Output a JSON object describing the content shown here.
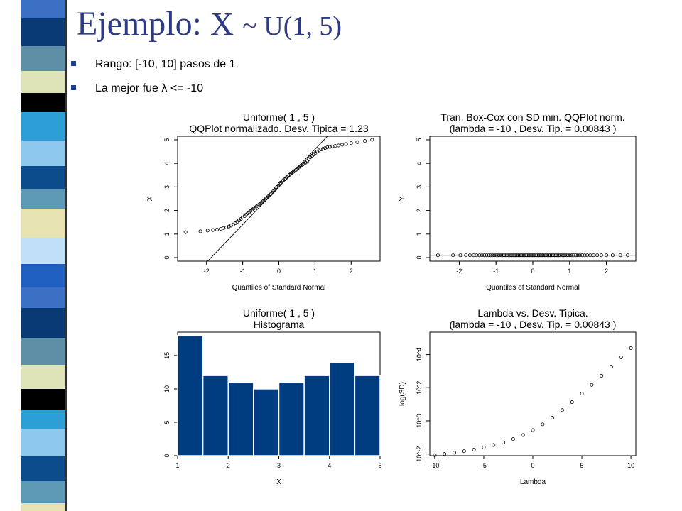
{
  "slide": {
    "title_prefix": "Ejemplo:",
    "title_var": "X",
    "title_dist": "~ U(1, 5)",
    "bullets": [
      "Rango: [-10, 10] pasos de 1.",
      "La mejor fue λ <= -10"
    ]
  },
  "colors": {
    "title": "#2d3b86",
    "bar_fill": "#003c80",
    "bullet": "#1f3d8a"
  },
  "chart_data": [
    {
      "id": "qq-x",
      "type": "scatter",
      "title": "Uniforme( 1 ,  5 )",
      "subtitle": "QQPlot normalizado. Desv. Tipica =  1.23",
      "xlabel": "Quantiles of Standard Normal",
      "ylabel": "X",
      "xlim": [
        -2.8,
        2.8
      ],
      "ylim": [
        -0.15,
        5.15
      ],
      "xticks": [
        -2,
        -1,
        0,
        1,
        2
      ],
      "yticks": [
        0,
        1,
        2,
        3,
        4,
        5
      ],
      "reference_line": {
        "intercept": 3.0,
        "slope": 1.6
      },
      "x": [
        -2.58,
        -2.17,
        -1.97,
        -1.82,
        -1.71,
        -1.61,
        -1.53,
        -1.45,
        -1.38,
        -1.32,
        -1.26,
        -1.2,
        -1.15,
        -1.1,
        -1.05,
        -1.0,
        -0.95,
        -0.91,
        -0.86,
        -0.82,
        -0.78,
        -0.74,
        -0.7,
        -0.66,
        -0.62,
        -0.58,
        -0.54,
        -0.5,
        -0.47,
        -0.43,
        -0.39,
        -0.36,
        -0.32,
        -0.29,
        -0.25,
        -0.22,
        -0.18,
        -0.15,
        -0.11,
        -0.08,
        -0.05,
        -0.01,
        0.02,
        0.05,
        0.09,
        0.12,
        0.16,
        0.19,
        0.22,
        0.26,
        0.29,
        0.33,
        0.36,
        0.4,
        0.44,
        0.47,
        0.51,
        0.55,
        0.59,
        0.62,
        0.66,
        0.7,
        0.74,
        0.79,
        0.83,
        0.87,
        0.92,
        0.96,
        1.01,
        1.06,
        1.11,
        1.17,
        1.22,
        1.28,
        1.34,
        1.41,
        1.48,
        1.56,
        1.65,
        1.75,
        1.86,
        2.0,
        2.17,
        2.38,
        2.58
      ],
      "y": [
        1.08,
        1.12,
        1.15,
        1.17,
        1.19,
        1.22,
        1.25,
        1.28,
        1.32,
        1.36,
        1.41,
        1.46,
        1.52,
        1.58,
        1.64,
        1.7,
        1.76,
        1.82,
        1.88,
        1.93,
        1.98,
        2.03,
        2.08,
        2.12,
        2.17,
        2.21,
        2.26,
        2.3,
        2.35,
        2.4,
        2.45,
        2.5,
        2.55,
        2.6,
        2.65,
        2.7,
        2.76,
        2.82,
        2.88,
        2.94,
        3.0,
        3.06,
        3.12,
        3.18,
        3.23,
        3.28,
        3.32,
        3.36,
        3.41,
        3.46,
        3.51,
        3.56,
        3.6,
        3.64,
        3.68,
        3.72,
        3.77,
        3.82,
        3.87,
        3.91,
        3.95,
        3.99,
        4.03,
        4.1,
        4.18,
        4.26,
        4.32,
        4.38,
        4.44,
        4.5,
        4.55,
        4.59,
        4.62,
        4.65,
        4.68,
        4.7,
        4.72,
        4.74,
        4.76,
        4.79,
        4.82,
        4.86,
        4.9,
        4.95,
        5.0
      ]
    },
    {
      "id": "qq-y",
      "type": "scatter",
      "title": "Tran. Box-Cox con SD min. QQPlot norm.",
      "subtitle": "(lambda =  -10 , Desv. Tip. =  0.00843 )",
      "xlabel": "Quantiles of Standard Normal",
      "ylabel": "Y",
      "xlim": [
        -2.8,
        2.8
      ],
      "ylim": [
        -0.15,
        5.15
      ],
      "xticks": [
        -2,
        -1,
        0,
        1,
        2
      ],
      "yticks": [
        0,
        1,
        2,
        3,
        4,
        5
      ],
      "reference_line": {
        "intercept": 0.1,
        "slope": 0
      },
      "x": [
        -2.58,
        -2.17,
        -1.97,
        -1.82,
        -1.71,
        -1.61,
        -1.53,
        -1.45,
        -1.38,
        -1.32,
        -1.26,
        -1.2,
        -1.15,
        -1.1,
        -1.05,
        -1.0,
        -0.95,
        -0.91,
        -0.86,
        -0.82,
        -0.78,
        -0.74,
        -0.7,
        -0.66,
        -0.62,
        -0.58,
        -0.54,
        -0.5,
        -0.47,
        -0.43,
        -0.39,
        -0.36,
        -0.32,
        -0.29,
        -0.25,
        -0.22,
        -0.18,
        -0.15,
        -0.11,
        -0.08,
        -0.05,
        -0.01,
        0.02,
        0.05,
        0.09,
        0.12,
        0.16,
        0.19,
        0.22,
        0.26,
        0.29,
        0.33,
        0.36,
        0.4,
        0.44,
        0.47,
        0.51,
        0.55,
        0.59,
        0.62,
        0.66,
        0.7,
        0.74,
        0.79,
        0.83,
        0.87,
        0.92,
        0.96,
        1.01,
        1.06,
        1.11,
        1.17,
        1.22,
        1.28,
        1.34,
        1.41,
        1.48,
        1.56,
        1.65,
        1.75,
        1.86,
        2.0,
        2.17,
        2.38,
        2.58
      ],
      "y": [
        0.1,
        0.1,
        0.1,
        0.1,
        0.1,
        0.1,
        0.1,
        0.1,
        0.1,
        0.1,
        0.1,
        0.1,
        0.1,
        0.1,
        0.1,
        0.1,
        0.1,
        0.1,
        0.1,
        0.1,
        0.1,
        0.1,
        0.1,
        0.1,
        0.1,
        0.1,
        0.1,
        0.1,
        0.1,
        0.1,
        0.1,
        0.1,
        0.1,
        0.1,
        0.1,
        0.1,
        0.1,
        0.1,
        0.1,
        0.1,
        0.1,
        0.1,
        0.1,
        0.1,
        0.1,
        0.1,
        0.1,
        0.1,
        0.1,
        0.1,
        0.1,
        0.1,
        0.1,
        0.1,
        0.1,
        0.1,
        0.1,
        0.1,
        0.1,
        0.1,
        0.1,
        0.1,
        0.1,
        0.1,
        0.1,
        0.1,
        0.1,
        0.1,
        0.1,
        0.1,
        0.1,
        0.1,
        0.1,
        0.1,
        0.1,
        0.1,
        0.1,
        0.1,
        0.1,
        0.1,
        0.1,
        0.1,
        0.1,
        0.1,
        0.1
      ]
    },
    {
      "id": "hist-x",
      "type": "bar",
      "title": "Uniforme( 1 ,  5 )",
      "subtitle": "Histograma",
      "xlabel": "X",
      "ylabel": "",
      "bins": [
        [
          1.0,
          1.5
        ],
        [
          1.5,
          2.0
        ],
        [
          2.0,
          2.5
        ],
        [
          2.5,
          3.0
        ],
        [
          3.0,
          3.5
        ],
        [
          3.5,
          4.0
        ],
        [
          4.0,
          4.5
        ],
        [
          4.5,
          5.0
        ]
      ],
      "values": [
        18,
        12,
        11,
        10,
        11,
        12,
        14,
        12
      ],
      "xlim": [
        1,
        5
      ],
      "ylim": [
        0,
        18.5
      ],
      "xticks": [
        1,
        2,
        3,
        4,
        5
      ],
      "yticks": [
        0,
        5,
        10,
        15
      ],
      "grid": false
    },
    {
      "id": "lambda-sd",
      "type": "scatter",
      "title": "Lambda vs. Desv. Tipica.",
      "subtitle": "(lambda =  -10 , Desv. Tip. =  0.00843 )",
      "xlabel": "Lambda",
      "ylabel": "log(SD)",
      "log_y": true,
      "xlim": [
        -10.5,
        10.5
      ],
      "ylim": [
        -2.1,
        5.35
      ],
      "xticks": [
        -10,
        -5,
        0,
        5,
        10
      ],
      "yticks": [
        -2,
        0,
        2,
        4
      ],
      "ytick_labels": [
        "10^-2",
        "10^0",
        "10^2",
        "10^4"
      ],
      "x": [
        -10,
        -9,
        -8,
        -7,
        -6,
        -5,
        -4,
        -3,
        -2,
        -1,
        0,
        1,
        2,
        3,
        4,
        5,
        6,
        7,
        8,
        9,
        10
      ],
      "y_log10": [
        -2.07,
        -2.0,
        -1.92,
        -1.83,
        -1.73,
        -1.6,
        -1.46,
        -1.3,
        -1.1,
        -0.86,
        -0.56,
        -0.21,
        0.19,
        0.65,
        1.13,
        1.64,
        2.17,
        2.72,
        3.27,
        3.83,
        4.39
      ]
    }
  ]
}
